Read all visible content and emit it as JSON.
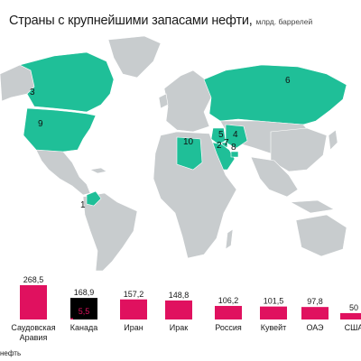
{
  "title": "Страны с крупнейшими запасами нефти,",
  "unit": "млрд. баррелей",
  "footnote": "нефть",
  "colors": {
    "map_land": "#c8ccce",
    "map_border": "#ffffff",
    "map_ocean": "#ffffff",
    "highlight": "#1fbf98",
    "bar": "#e0115f",
    "bar_canada_oil_sands": "#000000",
    "bar_canada_oil": "#e0115f"
  },
  "map": {
    "highlighted_countries": [
      {
        "rank": "1",
        "country": "Венесуэла"
      },
      {
        "rank": "2",
        "country": "Саудовская Аравия"
      },
      {
        "rank": "3",
        "country": "Канада"
      },
      {
        "rank": "4",
        "country": "Иран"
      },
      {
        "rank": "5",
        "country": "Ирак"
      },
      {
        "rank": "6",
        "country": "Россия"
      },
      {
        "rank": "7",
        "country": "Кувейт"
      },
      {
        "rank": "8",
        "country": "ОАЭ"
      },
      {
        "rank": "9",
        "country": "США"
      },
      {
        "rank": "10",
        "country": "Ливия"
      }
    ]
  },
  "chart_data": {
    "type": "bar",
    "categories": [
      "Саудовская Аравия",
      "Канада",
      "Иран",
      "Ирак",
      "Россия",
      "Кувейт",
      "ОАЭ",
      "США"
    ],
    "category_lines": [
      [
        "Саудовская",
        "Аравия"
      ],
      [
        "Канада"
      ],
      [
        "Иран"
      ],
      [
        "Ирак"
      ],
      [
        "Россия"
      ],
      [
        "Кувейт"
      ],
      [
        "ОАЭ"
      ],
      [
        "США"
      ]
    ],
    "values": [
      268.5,
      168.9,
      157.2,
      148.8,
      106.2,
      101.5,
      97.8,
      50
    ],
    "value_labels": [
      "268,5",
      "168,9",
      "157,2",
      "148,8",
      "106,2",
      "101,5",
      "97,8",
      "50"
    ],
    "canada_inner": {
      "value": 5.5,
      "label": "5,5"
    },
    "title": "",
    "xlabel": "",
    "ylabel": ""
  }
}
